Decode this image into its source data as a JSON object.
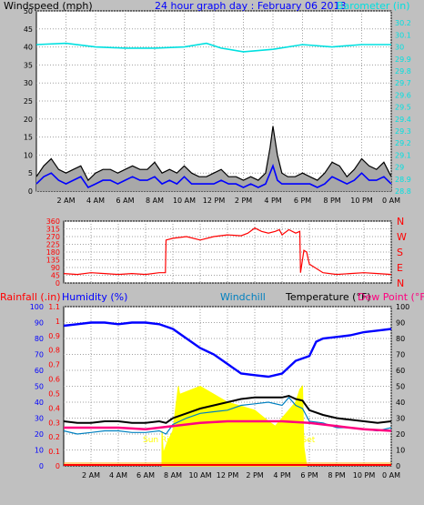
{
  "header": {
    "title": "24 hour graph day : February 06 2013",
    "left_label": "Windspeed (mph)",
    "right_label": "Barometer (in)"
  },
  "colors": {
    "background": "#c0c0c0",
    "plot_bg": "#ffffff",
    "grid": "#a0a0a0",
    "title": "#0000ff",
    "barometer": "#00e0e0",
    "wind_gust": "#000000",
    "wind_avg": "#0000ff",
    "wind_fill": "#a8a8a8",
    "direction": "#ff0000",
    "rain": "#ff0000",
    "humidity": "#0000ff",
    "windchill": "#0080c0",
    "temperature": "#000000",
    "dewpoint": "#ff0080",
    "solar": "#ffff00",
    "sun_label": "#ffff00"
  },
  "time_ticks": [
    "2 AM",
    "4 AM",
    "6 AM",
    "8 AM",
    "10 AM",
    "12 PM",
    "2 PM",
    "4 PM",
    "6 PM",
    "8 PM",
    "10 PM",
    "0 AM"
  ],
  "chart_data": [
    {
      "type": "line",
      "title": "24 hour graph day : February 06 2013",
      "xlabel": "",
      "ylabel": "Windspeed (mph)",
      "y2label": "Barometer (in)",
      "x_range_hours": [
        0,
        24
      ],
      "ylim": [
        0,
        50
      ],
      "yticks": [
        0,
        5,
        10,
        15,
        20,
        25,
        30,
        35,
        40,
        45,
        50
      ],
      "y2lim": [
        28.8,
        30.3
      ],
      "y2ticks": [
        "28.8",
        "28.9",
        "29",
        "29.1",
        "29.2",
        "29.3",
        "29.4",
        "29.5",
        "29.6",
        "29.7",
        "29.8",
        "29.9",
        "30",
        "30.1",
        "30.2"
      ],
      "grid": true,
      "series": [
        {
          "name": "Barometer (in)",
          "axis": "right",
          "x": [
            0,
            2,
            4,
            6,
            8,
            10,
            11.5,
            12.5,
            14,
            15,
            16,
            18,
            20,
            22,
            24
          ],
          "values": [
            30.02,
            30.03,
            30.0,
            29.99,
            29.99,
            30.0,
            30.03,
            29.99,
            29.96,
            29.97,
            29.98,
            30.02,
            30.0,
            30.02,
            30.02
          ]
        },
        {
          "name": "Gust",
          "axis": "left",
          "x": [
            0,
            0.5,
            1,
            1.5,
            2,
            2.5,
            3,
            3.5,
            4,
            4.5,
            5,
            5.5,
            6,
            6.5,
            7,
            7.5,
            8,
            8.5,
            9,
            9.5,
            10,
            10.5,
            11,
            11.5,
            12,
            12.5,
            13,
            13.5,
            14,
            14.5,
            15,
            15.5,
            15.8,
            16,
            16.3,
            16.6,
            17,
            17.5,
            18,
            18.5,
            19,
            19.5,
            20,
            20.5,
            21,
            21.5,
            22,
            22.5,
            23,
            23.5,
            24
          ],
          "values": [
            4,
            7,
            9,
            6,
            5,
            6,
            7,
            3,
            5,
            6,
            6,
            5,
            6,
            7,
            6,
            6,
            8,
            5,
            6,
            5,
            7,
            5,
            4,
            4,
            5,
            6,
            4,
            4,
            3,
            4,
            3,
            5,
            12,
            18,
            10,
            5,
            4,
            4,
            5,
            4,
            3,
            5,
            8,
            7,
            4,
            6,
            9,
            7,
            6,
            8,
            4
          ]
        },
        {
          "name": "Average",
          "axis": "left",
          "x": [
            0,
            0.5,
            1,
            1.5,
            2,
            2.5,
            3,
            3.5,
            4,
            4.5,
            5,
            5.5,
            6,
            6.5,
            7,
            7.5,
            8,
            8.5,
            9,
            9.5,
            10,
            10.5,
            11,
            11.5,
            12,
            12.5,
            13,
            13.5,
            14,
            14.5,
            15,
            15.5,
            15.8,
            16,
            16.3,
            16.6,
            17,
            17.5,
            18,
            18.5,
            19,
            19.5,
            20,
            20.5,
            21,
            21.5,
            22,
            22.5,
            23,
            23.5,
            24
          ],
          "values": [
            2,
            4,
            5,
            3,
            2,
            3,
            4,
            1,
            2,
            3,
            3,
            2,
            3,
            4,
            3,
            3,
            4,
            2,
            3,
            2,
            4,
            2,
            2,
            2,
            2,
            3,
            2,
            2,
            1,
            2,
            1,
            2,
            5,
            7,
            3,
            2,
            2,
            2,
            2,
            2,
            1,
            2,
            4,
            3,
            2,
            3,
            5,
            3,
            3,
            4,
            2
          ]
        }
      ]
    },
    {
      "type": "line",
      "ylabel": "",
      "x_range_hours": [
        0,
        24
      ],
      "ylim": [
        0,
        360
      ],
      "yticks": [
        0,
        45,
        90,
        135,
        180,
        225,
        270,
        315,
        360
      ],
      "compass_labels": [
        "N",
        "W",
        "S",
        "E",
        "N"
      ],
      "grid": true,
      "series": [
        {
          "name": "Wind direction",
          "x": [
            0,
            1,
            2,
            3,
            4,
            5,
            6,
            7,
            7.45,
            7.5,
            8,
            9,
            10,
            11,
            12,
            13,
            13.5,
            14,
            14.5,
            15,
            15.5,
            15.8,
            16,
            16.5,
            17,
            17.3,
            17.35,
            17.6,
            17.8,
            18,
            19,
            20,
            21,
            22,
            23,
            24
          ],
          "values": [
            55,
            50,
            60,
            55,
            50,
            55,
            50,
            60,
            60,
            250,
            260,
            270,
            250,
            270,
            280,
            275,
            290,
            320,
            300,
            290,
            300,
            310,
            280,
            310,
            290,
            300,
            60,
            190,
            180,
            110,
            60,
            50,
            55,
            60,
            55,
            50
          ]
        }
      ]
    },
    {
      "type": "line",
      "x_range_hours": [
        0,
        24
      ],
      "axes_left": [
        {
          "label": "Rainfall (.in)",
          "ticks": [
            "0",
            "0.1",
            "0.2",
            "0.3",
            "0.4",
            "0.5",
            "0.6",
            "0.7",
            "0.8",
            "0.9",
            "1",
            "1.1"
          ]
        },
        {
          "label": "Humidity (%)",
          "ticks": [
            "0",
            "10",
            "20",
            "30",
            "40",
            "50",
            "60",
            "70",
            "80",
            "90",
            "100"
          ]
        }
      ],
      "axis_right": {
        "label": "Temperature (°F)",
        "ticks": [
          "0",
          "10",
          "20",
          "30",
          "40",
          "50",
          "60",
          "70",
          "80",
          "90",
          "100"
        ]
      },
      "legend_labels": [
        "Windchill",
        "Temperature (°F)",
        "Dew Point (°F)"
      ],
      "annotations": [
        "Sun Rise",
        "Sun Set"
      ],
      "grid": true,
      "series": [
        {
          "name": "Humidity (%)",
          "x": [
            0,
            1,
            2,
            3,
            4,
            5,
            6,
            7,
            8,
            9,
            10,
            11,
            12,
            13,
            14,
            15,
            16,
            17,
            18,
            18.5,
            19,
            20,
            21,
            22,
            23,
            24
          ],
          "values": [
            88,
            89,
            90,
            90,
            89,
            90,
            90,
            89,
            86,
            80,
            74,
            70,
            64,
            58,
            57,
            56,
            58,
            66,
            69,
            78,
            80,
            81,
            82,
            84,
            85,
            86
          ]
        },
        {
          "name": "Temperature (°F)",
          "x": [
            0,
            1,
            2,
            3,
            4,
            5,
            6,
            7,
            7.5,
            8,
            9,
            10,
            11,
            12,
            13,
            14,
            15,
            16,
            16.5,
            17,
            17.5,
            18,
            19,
            20,
            21,
            22,
            23,
            24
          ],
          "values": [
            28,
            27,
            27,
            28,
            28,
            27,
            27,
            28,
            27,
            30,
            33,
            36,
            38,
            40,
            42,
            43,
            43,
            43,
            44,
            42,
            41,
            35,
            32,
            30,
            29,
            28,
            27,
            28
          ]
        },
        {
          "name": "Windchill",
          "x": [
            0,
            1,
            2,
            3,
            4,
            5,
            6,
            7,
            7.5,
            8,
            9,
            10,
            11,
            12,
            13,
            14,
            15,
            16,
            16.5,
            17,
            17.5,
            18,
            19,
            20,
            21,
            22,
            23,
            24
          ],
          "values": [
            22,
            20,
            21,
            22,
            22,
            21,
            21,
            22,
            20,
            26,
            30,
            33,
            34,
            35,
            38,
            39,
            40,
            38,
            43,
            38,
            36,
            28,
            27,
            24,
            24,
            23,
            22,
            24
          ]
        },
        {
          "name": "Dew Point (°F)",
          "x": [
            0,
            2,
            4,
            6,
            8,
            10,
            12,
            14,
            16,
            18,
            20,
            22,
            24
          ],
          "values": [
            24,
            24,
            24,
            23,
            25,
            27,
            28,
            28,
            28,
            27,
            25,
            23,
            22
          ]
        },
        {
          "name": "Solar",
          "x": [
            7.2,
            7.3,
            7.6,
            8,
            8.4,
            8.5,
            10,
            12,
            14,
            15,
            15.5,
            16,
            17,
            17.3,
            17.5,
            17.6,
            17.8
          ],
          "values": [
            22,
            8,
            15,
            22,
            50,
            45,
            50,
            40,
            35,
            28,
            25,
            30,
            40,
            48,
            50,
            12,
            0
          ]
        }
      ]
    }
  ]
}
